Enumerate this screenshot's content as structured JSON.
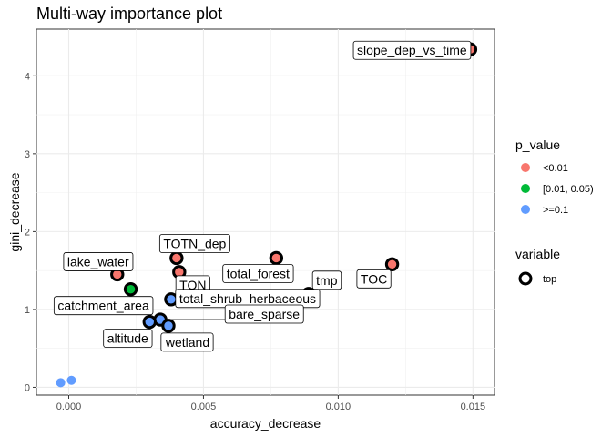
{
  "chart_data": {
    "type": "scatter",
    "title": "Multi-way importance plot",
    "xlabel": "accuracy_decrease",
    "ylabel": "gini_decrease",
    "xlim": [
      -0.0012,
      0.0158
    ],
    "ylim": [
      -0.1,
      4.6
    ],
    "x_ticks": [
      0.0,
      0.005,
      0.01,
      0.015
    ],
    "x_tick_labels": [
      "0.000",
      "0.005",
      "0.010",
      "0.015"
    ],
    "y_ticks": [
      0,
      1,
      2,
      3,
      4
    ],
    "y_tick_labels": [
      "0",
      "1",
      "2",
      "3",
      "4"
    ],
    "grid": true,
    "legend_placement": "right",
    "legend": {
      "p_value": {
        "title": "p_value",
        "entries": [
          {
            "label": "<0.01",
            "color": "#F8766D"
          },
          {
            "label": "[0.01, 0.05)",
            "color": "#00BA38"
          },
          {
            "label": ">=0.1",
            "color": "#619CFF"
          }
        ]
      },
      "variable": {
        "title": "variable",
        "entries": [
          {
            "label": "top"
          }
        ]
      }
    },
    "points": [
      {
        "label": "slope_dep_vs_time",
        "x": 0.0149,
        "y": 4.34,
        "p": "<0.01",
        "top": true
      },
      {
        "label": "TOC",
        "x": 0.012,
        "y": 1.58,
        "p": "<0.01",
        "top": true
      },
      {
        "label": "total_forest",
        "x": 0.0077,
        "y": 1.66,
        "p": "<0.01",
        "top": true
      },
      {
        "label": "TOTN_dep",
        "x": 0.004,
        "y": 1.66,
        "p": "<0.01",
        "top": true
      },
      {
        "label": "TON",
        "x": 0.0041,
        "y": 1.48,
        "p": "<0.01",
        "top": true
      },
      {
        "label": "lake_water",
        "x": 0.0018,
        "y": 1.45,
        "p": "<0.01",
        "top": true
      },
      {
        "label": "catchment_area",
        "x": 0.0023,
        "y": 1.26,
        "p": "[0.01, 0.05)",
        "top": true
      },
      {
        "label": "tmp",
        "x": 0.0089,
        "y": 1.2,
        "p": ">=0.1",
        "top": true
      },
      {
        "label": "total_shrub_herbaceous",
        "x": 0.0038,
        "y": 1.13,
        "p": ">=0.1",
        "top": true
      },
      {
        "label": "bare_sparse",
        "x": 0.0034,
        "y": 0.87,
        "p": ">=0.1",
        "top": true
      },
      {
        "label": "altitude",
        "x": 0.003,
        "y": 0.84,
        "p": ">=0.1",
        "top": true
      },
      {
        "label": "wetland",
        "x": 0.0037,
        "y": 0.79,
        "p": ">=0.1",
        "top": true
      },
      {
        "label": "",
        "x": -0.0003,
        "y": 0.06,
        "p": ">=0.1",
        "top": false
      },
      {
        "label": "",
        "x": 0.0001,
        "y": 0.09,
        "p": ">=0.1",
        "top": false
      }
    ]
  }
}
